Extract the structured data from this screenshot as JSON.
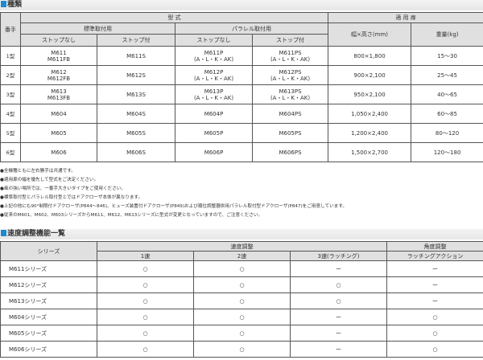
{
  "section1": {
    "title": "種類",
    "header": {
      "bante": "番手",
      "model": "型 式",
      "door": "適 用 扉",
      "standard": "標準取付用",
      "parallel": "パラレル取付用",
      "stop_none": "ストップなし",
      "stop_with": "ストップ付",
      "size": "幅×高さ(mm)",
      "weight": "重量(kg)"
    },
    "rows": [
      {
        "no": "1型",
        "std_none": [
          "M611",
          "M611FB"
        ],
        "std_stop": "M611S",
        "par_none": [
          "M611P",
          "(A・L・K・AK)"
        ],
        "par_stop": [
          "M611PS",
          "(A・L・K・AK)"
        ],
        "size": "800×1,800",
        "weight": "15〜30"
      },
      {
        "no": "2型",
        "std_none": [
          "M612",
          "M612FB"
        ],
        "std_stop": "M612S",
        "par_none": [
          "M612P",
          "(A・L・K・AK)"
        ],
        "par_stop": [
          "M612PS",
          "(A・L・K・AK)"
        ],
        "size": "900×2,100",
        "weight": "25〜45"
      },
      {
        "no": "3型",
        "std_none": [
          "M613",
          "M613FB"
        ],
        "std_stop": "M613S",
        "par_none": [
          "M613P",
          "(A・L・K・AK)"
        ],
        "par_stop": [
          "M613PS",
          "(A・L・K・AK)"
        ],
        "size": "950×2,100",
        "weight": "40〜65"
      },
      {
        "no": "4型",
        "std_none": [
          "M604",
          ""
        ],
        "std_stop": "M604S",
        "par_none": [
          "M604P",
          ""
        ],
        "par_stop": [
          "M604PS",
          ""
        ],
        "size": "1,050×2,400",
        "weight": "60〜85"
      },
      {
        "no": "5型",
        "std_none": [
          "M605",
          ""
        ],
        "std_stop": "M605S",
        "par_none": [
          "M605P",
          ""
        ],
        "par_stop": [
          "M605PS",
          ""
        ],
        "size": "1,200×2,400",
        "weight": "80〜120"
      },
      {
        "no": "6型",
        "std_none": [
          "M606",
          ""
        ],
        "std_stop": "M606S",
        "par_none": [
          "M606P",
          ""
        ],
        "par_stop": [
          "M606PS",
          ""
        ],
        "size": "1,500×2,700",
        "weight": "120〜180"
      }
    ],
    "notes": [
      "●全機種ともに左右勝手は共通です。",
      "●適用扉の幅を優先して型式をご決定ください。",
      "●風の強い場所では、一番手大きいタイプをご使用ください。",
      "●標準取付型とパラレル取付型とではドアクローザ本体が異なります。",
      "●上記の他にも90°制限付ドアクローザ(P844〜846)、ヒューズ装置付ドアクローザ(P849)および順位調整器併用パラレル取付型ドアクローザ(P847)をご用意しています。",
      "●従来のM601、M602、M603シリーズからM611、M612、M613シリーズに型式が変更となっていますので、ご注意ください。"
    ]
  },
  "section2": {
    "title": "速度調整機能一覧",
    "header": {
      "series": "シリーズ",
      "speed": "速度調整",
      "angle": "角度調整",
      "s1": "1速",
      "s2": "2速",
      "s3": "3速(ラッチング)",
      "latch": "ラッチングアクション"
    },
    "rows": [
      {
        "series": "M611シリーズ",
        "v": [
          "○",
          "○",
          "ー",
          "ー"
        ]
      },
      {
        "series": "M612シリーズ",
        "v": [
          "○",
          "○",
          "○",
          "ー"
        ]
      },
      {
        "series": "M613シリーズ",
        "v": [
          "○",
          "○",
          "○",
          "ー"
        ]
      },
      {
        "series": "M604シリーズ",
        "v": [
          "○",
          "○",
          "ー",
          "○"
        ]
      },
      {
        "series": "M605シリーズ",
        "v": [
          "○",
          "○",
          "ー",
          "○"
        ]
      },
      {
        "series": "M606シリーズ",
        "v": [
          "○",
          "○",
          "ー",
          "○"
        ]
      }
    ]
  },
  "colors": {
    "accent": "#1e88d0",
    "header_bg": "#e0e0e0"
  }
}
